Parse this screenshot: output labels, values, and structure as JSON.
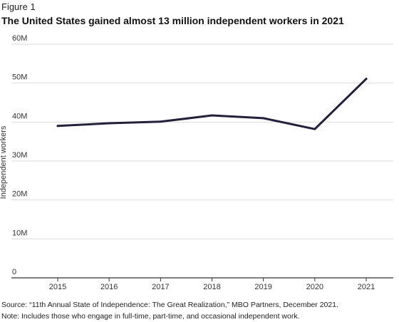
{
  "figure_label": "Figure 1",
  "chart_data": {
    "type": "line",
    "title": "The United States gained almost 13 million independent workers in 2021",
    "xlabel": "",
    "ylabel": "Independent workers",
    "categories": [
      "2015",
      "2016",
      "2017",
      "2018",
      "2019",
      "2020",
      "2021"
    ],
    "series": [
      {
        "values": [
          39.0,
          39.7,
          40.1,
          41.7,
          41.0,
          38.2,
          51.1
        ]
      }
    ],
    "ylim": [
      0,
      60
    ],
    "yticks": [
      0,
      10,
      20,
      30,
      40,
      50,
      60
    ],
    "ytick_labels": [
      "0",
      "10M",
      "20M",
      "30M",
      "40M",
      "50M",
      "60M"
    ],
    "grid": true,
    "line_color": "#22203a"
  },
  "notes": {
    "source": "Source: “11th Annual State of Independence: The Great Realization,” MBO Partners, December 2021.",
    "note": "Note: Includes those who engage in full-time, part-time, and occasional independent work."
  }
}
